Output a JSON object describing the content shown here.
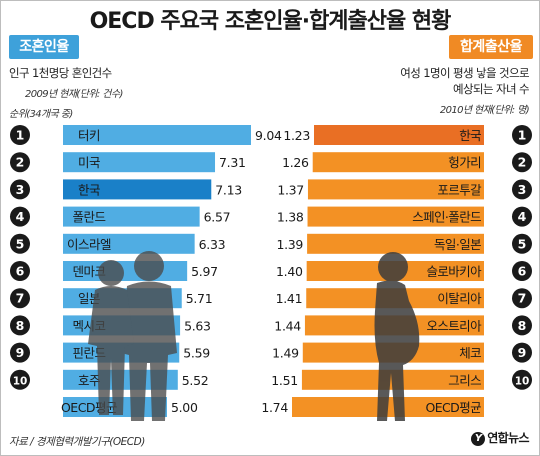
{
  "title": "OECD 주요국 조혼인율·합계출산율 현황",
  "left_panel": {
    "tag": "조혼인율",
    "description": "인구 1천명당 혼인건수",
    "note": "2009년 현재(단위: 건수)",
    "rank_note": "순위(34개국 중)"
  },
  "right_panel": {
    "tag": "합계출산율",
    "description_line1": "여성 1명이 평생 낳을 것으로",
    "description_line2": "예상되는 자녀 수",
    "note": "2010년 현재(단위: 명)"
  },
  "source": "자료 / 경제협력개발기구(OECD)",
  "credit": "연합뉴스",
  "colors": {
    "marriage_bar": "#50ade3",
    "marriage_highlight": "#1a80c8",
    "fertility_bar": "#f39124",
    "fertility_highlight": "#e96f24",
    "rank_circle": "#1a1a1a",
    "figure": "#4a4a4a"
  },
  "icons": {
    "rank_marker": "black-circle-number",
    "left_figure": "couple-silhouette",
    "right_figure": "pregnant-woman-silhouette",
    "credit_icon": "yonhap-logo"
  },
  "chart_data": [
    {
      "type": "bar",
      "orientation": "horizontal",
      "title": "조혼인율",
      "ranks": [
        "1",
        "2",
        "3",
        "4",
        "5",
        "6",
        "7",
        "8",
        "9",
        "10",
        ""
      ],
      "categories": [
        "터키",
        "미국",
        "한국",
        "폴란드",
        "이스라엘",
        "덴마크",
        "일본",
        "멕시코",
        "핀란드",
        "호주",
        "OECD평균"
      ],
      "values": [
        9.04,
        7.31,
        7.13,
        6.57,
        6.33,
        5.97,
        5.71,
        5.63,
        5.59,
        5.52,
        5.0
      ],
      "value_labels": [
        "9.04",
        "7.31",
        "7.13",
        "6.57",
        "6.33",
        "5.97",
        "5.71",
        "5.63",
        "5.59",
        "5.52",
        "5.00"
      ],
      "highlight": "한국",
      "grid": false
    },
    {
      "type": "bar",
      "orientation": "horizontal",
      "title": "합계출산율",
      "ranks": [
        "1",
        "2",
        "3",
        "4",
        "5",
        "6",
        "7",
        "8",
        "9",
        "10",
        ""
      ],
      "categories": [
        "한국",
        "헝가리",
        "포르투갈",
        "스페인·폴란드",
        "독일·일본",
        "슬로바키아",
        "이탈리아",
        "오스트리아",
        "체코",
        "그리스",
        "OECD평균"
      ],
      "values": [
        1.23,
        1.26,
        1.37,
        1.38,
        1.39,
        1.4,
        1.41,
        1.44,
        1.49,
        1.51,
        1.74
      ],
      "value_labels": [
        "1.23",
        "1.26",
        "1.37",
        "1.38",
        "1.39",
        "1.40",
        "1.41",
        "1.44",
        "1.49",
        "1.51",
        "1.74"
      ],
      "highlight": "한국",
      "grid": false
    }
  ]
}
